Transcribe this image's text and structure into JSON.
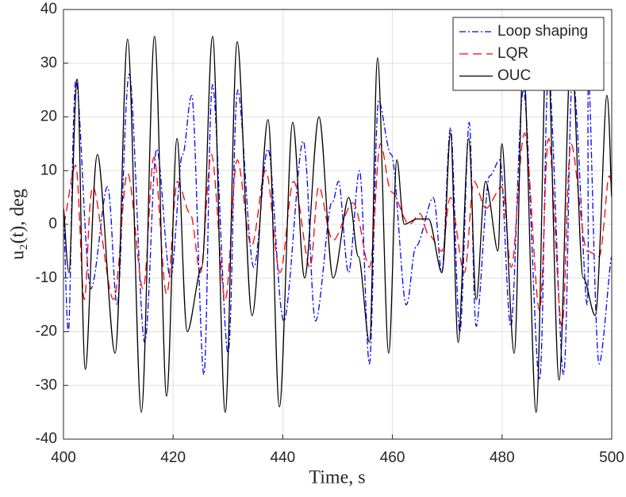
{
  "chart_data": {
    "type": "line",
    "xlabel": "Time, s",
    "ylabel": "u₂(t), deg",
    "xlim": [
      400,
      500
    ],
    "ylim": [
      -40,
      40
    ],
    "xticks": [
      400,
      420,
      440,
      460,
      480,
      500
    ],
    "yticks": [
      -40,
      -30,
      -20,
      -10,
      0,
      10,
      20,
      30,
      40
    ],
    "grid": true,
    "legend": "upper right",
    "series": [
      {
        "name": "Loop shaping",
        "color": "#0000ff",
        "style": "dashdot",
        "x": [
          400,
          400.9,
          402.3,
          405,
          408,
          409.8,
          412,
          414.8,
          417,
          419.5,
          421.7,
          423.4,
          425.6,
          427.2,
          430,
          431.8,
          434.7,
          437.3,
          440.2,
          443.7,
          446,
          448.9,
          450.2,
          452,
          454,
          455.8,
          457.5,
          459.8,
          462.5,
          464.4,
          467.4,
          469,
          470.6,
          472.3,
          474,
          475.3,
          477.7,
          479.6,
          481.6,
          483.9,
          486.8,
          488.5,
          491.2,
          492.9,
          495.5,
          495.8,
          497.7,
          500
        ],
        "values": [
          3,
          -20,
          27,
          -12,
          7,
          -15,
          28,
          -22,
          14,
          -10,
          13,
          24,
          -28,
          26,
          -24,
          25,
          -8,
          14,
          -18,
          15.5,
          -18,
          4,
          8,
          -9,
          10,
          -26,
          23,
          13,
          -15,
          -4,
          5,
          -9,
          18,
          -20,
          19,
          -19,
          9,
          12,
          -19,
          25,
          -29,
          28,
          -28,
          28,
          -15,
          27,
          -26,
          -6
        ]
      },
      {
        "name": "LQR",
        "color": "#ff0000",
        "style": "dashed",
        "x": [
          400,
          402.2,
          403.8,
          405.4,
          409.1,
          411.7,
          414.5,
          416.5,
          418.8,
          420.8,
          423.1,
          425,
          427,
          429.5,
          431.7,
          434.3,
          436.9,
          439.5,
          442,
          444.9,
          446.6,
          449.2,
          452.8,
          455.8,
          457.8,
          459.9,
          463,
          465,
          466.7,
          469,
          470.6,
          473.1,
          474.9,
          477.1,
          479.9,
          481.7,
          484.1,
          486.8,
          488.5,
          490.9,
          492.6,
          495.5,
          497.7,
          499.5,
          500
        ],
        "values": [
          0,
          11,
          -14,
          7,
          -14,
          9.5,
          -12,
          12.5,
          -13,
          8,
          2,
          -9,
          13,
          -14,
          12,
          -4,
          10,
          -9,
          8,
          -8,
          7,
          -3,
          4,
          -8,
          15,
          6,
          0,
          2,
          -2,
          -5,
          5,
          -9,
          8,
          3,
          7,
          -8,
          17,
          -16,
          16,
          -19,
          15,
          -5,
          -6,
          9,
          7
        ]
      },
      {
        "name": "OUC",
        "color": "#000000",
        "style": "solid",
        "x": [
          400,
          401,
          402.5,
          404,
          406.2,
          409.4,
          411.7,
          414.2,
          416.6,
          418.8,
          420.7,
          422.6,
          425.2,
          427.2,
          429.5,
          431.7,
          434.4,
          437.3,
          439.4,
          441.8,
          444,
          446.6,
          449.2,
          452,
          453.8,
          455.8,
          457.3,
          459.3,
          460.8,
          462.2,
          464.5,
          466.6,
          469,
          470.6,
          472,
          473.9,
          475.3,
          477,
          479.2,
          480,
          482.2,
          483.9,
          486.2,
          488.2,
          490.4,
          492.6,
          494.8,
          497,
          499.1,
          500
        ],
        "values": [
          3,
          -9,
          27,
          -27,
          13,
          -24,
          34.5,
          -35,
          35,
          -32,
          16,
          -20,
          -8,
          35,
          -35,
          34,
          -17,
          19.5,
          -34,
          19,
          -10,
          20,
          -10,
          5,
          -6,
          -22,
          31,
          -24,
          12,
          0,
          1,
          1,
          -9,
          17,
          -22,
          16,
          -14,
          8,
          -5,
          15,
          -24,
          30,
          -35,
          36,
          -29,
          33,
          -10,
          -17,
          24,
          5
        ]
      }
    ]
  }
}
